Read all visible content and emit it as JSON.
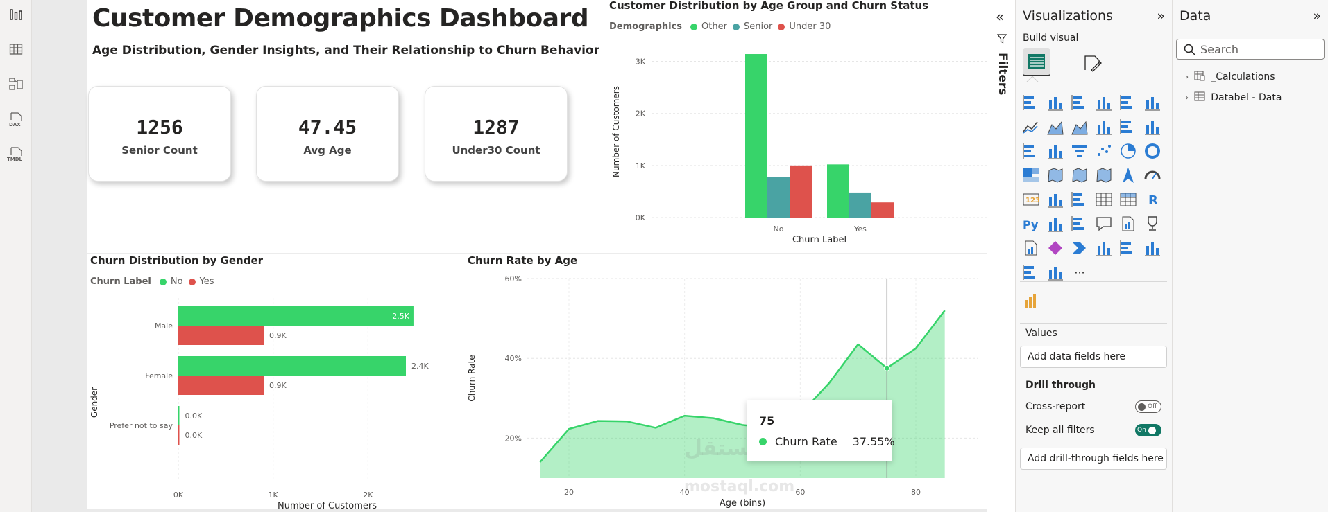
{
  "report": {
    "title": "Customer Demographics Dashboard",
    "subtitle": "Age Distribution, Gender Insights, and Their Relationship to Churn Behavior",
    "cards": [
      {
        "value": "1256",
        "label": "Senior Count"
      },
      {
        "value": "47.45",
        "label": "Avg Age"
      },
      {
        "value": "1287",
        "label": "Under30 Count"
      }
    ]
  },
  "rail": {
    "dax_label": "DAX",
    "tmdl_label": "TMDL"
  },
  "visuals": {
    "age_group": {
      "title": "Customer Distribution by Age Group and Churn Status",
      "legend_title": "Demographics",
      "legend": [
        "Other",
        "Senior",
        "Under 30"
      ],
      "xlabel": "Churn Label",
      "ylabel": "Number of Customers",
      "yticks": [
        "0K",
        "1K",
        "2K",
        "3K"
      ],
      "categories": [
        "No",
        "Yes"
      ]
    },
    "gender": {
      "title": "Churn Distribution by Gender",
      "legend_title": "Churn Label",
      "legend": [
        "No",
        "Yes"
      ],
      "xlabel": "Number of Customers",
      "ylabel": "Gender",
      "xticks": [
        "0K",
        "1K",
        "2K"
      ],
      "categories": [
        "Male",
        "Female",
        "Prefer not to say"
      ],
      "data_labels": {
        "no": [
          "2.5K",
          "2.4K",
          "0.0K"
        ],
        "yes": [
          "0.9K",
          "0.9K",
          "0.0K"
        ]
      }
    },
    "age_rate": {
      "title": "Churn Rate by Age",
      "xlabel": "Age (bins)",
      "ylabel": "Churn Rate",
      "yticks": [
        "20%",
        "40%",
        "60%"
      ],
      "xticks": [
        "20",
        "40",
        "60",
        "80"
      ]
    },
    "tooltip": {
      "title": "75",
      "measure": "Churn Rate",
      "value": "37.55%"
    }
  },
  "watermark": {
    "arabic": "مستقل",
    "latin": "mostaql.com"
  },
  "chart_data": [
    {
      "type": "bar",
      "title": "Customer Distribution by Age Group and Churn Status",
      "xlabel": "Churn Label",
      "ylabel": "Number of Customers",
      "categories": [
        "No",
        "Yes"
      ],
      "series": [
        {
          "name": "Other",
          "values": [
            3140,
            1020
          ]
        },
        {
          "name": "Senior",
          "values": [
            780,
            480
          ]
        },
        {
          "name": "Under 30",
          "values": [
            1000,
            290
          ]
        }
      ],
      "ylim": [
        0,
        3300
      ],
      "legend": "top-left",
      "colors": [
        "#37d46a",
        "#4aa3a3",
        "#de524c"
      ]
    },
    {
      "type": "bar",
      "orientation": "horizontal",
      "title": "Churn Distribution by Gender",
      "xlabel": "Number of Customers",
      "ylabel": "Gender",
      "categories": [
        "Male",
        "Female",
        "Prefer not to say"
      ],
      "series": [
        {
          "name": "No",
          "values": [
            2480,
            2400,
            5
          ]
        },
        {
          "name": "Yes",
          "values": [
            900,
            900,
            3
          ]
        }
      ],
      "xlim": [
        0,
        2700
      ],
      "colors": [
        "#37d46a",
        "#de524c"
      ]
    },
    {
      "type": "area",
      "title": "Churn Rate by Age",
      "xlabel": "Age (bins)",
      "ylabel": "Churn Rate",
      "x": [
        15,
        20,
        25,
        30,
        35,
        40,
        45,
        50,
        55,
        60,
        65,
        70,
        75,
        80,
        85
      ],
      "values": [
        14,
        22.3,
        24.3,
        24.2,
        22.6,
        25.6,
        25,
        23.3,
        22.5,
        26,
        33.8,
        43.5,
        37.55,
        42.5,
        52
      ],
      "ylim": [
        10,
        60
      ],
      "xlim": [
        14,
        86
      ],
      "highlight_x": 75,
      "colors": [
        "#37d46a"
      ]
    }
  ],
  "filters_pane": {
    "label": "Filters"
  },
  "viz_pane": {
    "title": "Visualizations",
    "build_visual": "Build visual",
    "more": "···",
    "values_label": "Values",
    "values_placeholder": "Add data fields here",
    "drill_label": "Drill through",
    "cross_report": "Cross-report",
    "cross_report_state": "Off",
    "keep_filters": "Keep all filters",
    "keep_filters_state": "On",
    "drill_placeholder": "Add drill-through fields here"
  },
  "data_pane": {
    "title": "Data",
    "search_placeholder": "Search",
    "tables": [
      "_Calculations",
      "Databel - Data"
    ]
  }
}
